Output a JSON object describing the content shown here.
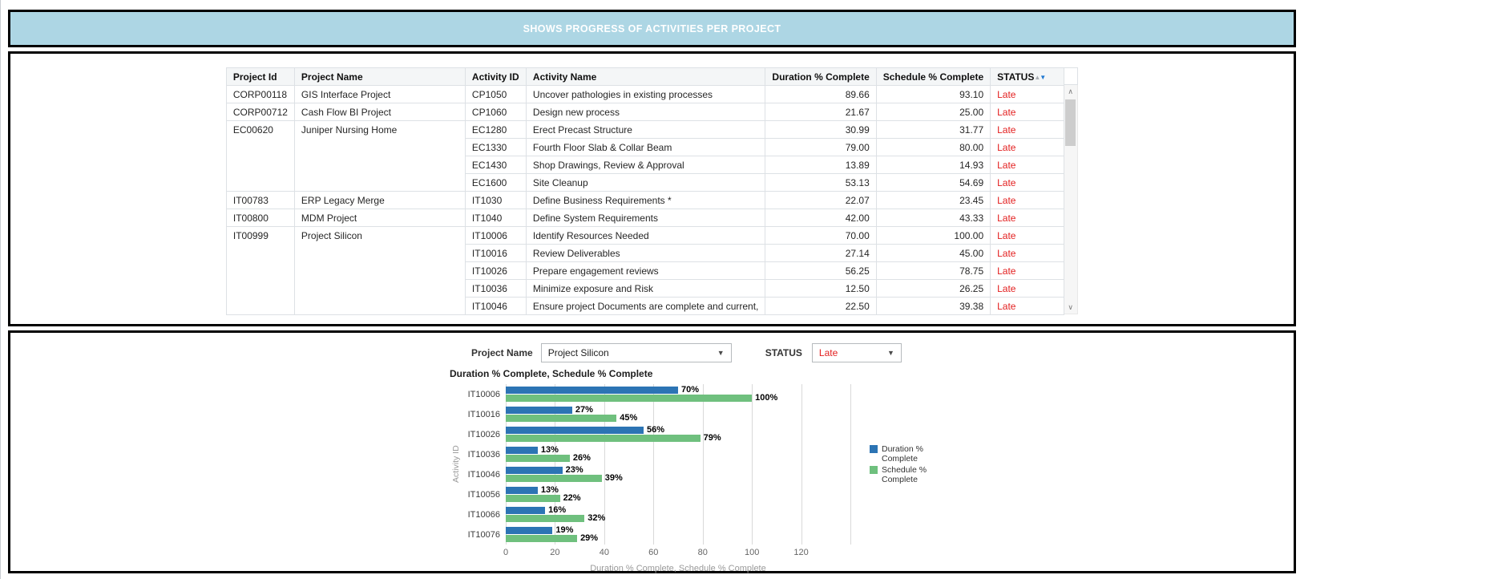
{
  "banner": {
    "title": "SHOWS PROGRESS OF ACTIVITIES PER PROJECT"
  },
  "colors": {
    "banner_bg": "#ADD6E4",
    "status_red": "#e32020",
    "bar_blue": "#2C74B4",
    "bar_green": "#6FC07E"
  },
  "icons": {
    "sort_asc": "▲",
    "sort_desc": "▼",
    "dropdown_arrow": "▼",
    "scroll_up": "∧",
    "scroll_down": "∨"
  },
  "table": {
    "columns": {
      "project_id": "Project Id",
      "project_name": "Project Name",
      "activity_id": "Activity ID",
      "activity_name": "Activity Name",
      "duration": "Duration % Complete",
      "schedule": "Schedule % Complete",
      "status": "STATUS"
    },
    "rows": [
      {
        "project_id": "CORP00118",
        "project_name": "GIS Interface Project",
        "project_rowspan": 1,
        "activity_id": "CP1050",
        "activity_name": "Uncover pathologies in existing processes",
        "duration": "89.66",
        "schedule": "93.10",
        "status": "Late"
      },
      {
        "project_id": "CORP00712",
        "project_name": "Cash Flow BI Project",
        "project_rowspan": 1,
        "activity_id": "CP1060",
        "activity_name": "Design new process",
        "duration": "21.67",
        "schedule": "25.00",
        "status": "Late"
      },
      {
        "project_id": "EC00620",
        "project_name": "Juniper Nursing Home",
        "project_rowspan": 4,
        "activity_id": "EC1280",
        "activity_name": "Erect Precast Structure",
        "duration": "30.99",
        "schedule": "31.77",
        "status": "Late"
      },
      {
        "activity_id": "EC1330",
        "activity_name": "Fourth Floor Slab & Collar Beam",
        "duration": "79.00",
        "schedule": "80.00",
        "status": "Late"
      },
      {
        "activity_id": "EC1430",
        "activity_name": "Shop Drawings, Review & Approval",
        "duration": "13.89",
        "schedule": "14.93",
        "status": "Late"
      },
      {
        "activity_id": "EC1600",
        "activity_name": "Site Cleanup",
        "duration": "53.13",
        "schedule": "54.69",
        "status": "Late"
      },
      {
        "project_id": "IT00783",
        "project_name": "ERP Legacy Merge",
        "project_rowspan": 1,
        "activity_id": "IT1030",
        "activity_name": "Define Business Requirements *",
        "duration": "22.07",
        "schedule": "23.45",
        "status": "Late"
      },
      {
        "project_id": "IT00800",
        "project_name": "MDM Project",
        "project_rowspan": 1,
        "activity_id": "IT1040",
        "activity_name": "Define System Requirements",
        "duration": "42.00",
        "schedule": "43.33",
        "status": "Late"
      },
      {
        "project_id": "IT00999",
        "project_name": "Project Silicon",
        "project_rowspan": 5,
        "activity_id": "IT10006",
        "activity_name": "Identify Resources Needed",
        "duration": "70.00",
        "schedule": "100.00",
        "status": "Late"
      },
      {
        "activity_id": "IT10016",
        "activity_name": "Review Deliverables",
        "duration": "27.14",
        "schedule": "45.00",
        "status": "Late"
      },
      {
        "activity_id": "IT10026",
        "activity_name": "Prepare engagement reviews",
        "duration": "56.25",
        "schedule": "78.75",
        "status": "Late"
      },
      {
        "activity_id": "IT10036",
        "activity_name": "Minimize exposure and Risk",
        "duration": "12.50",
        "schedule": "26.25",
        "status": "Late"
      },
      {
        "activity_id": "IT10046",
        "activity_name": "Ensure project Documents are complete and current,",
        "duration": "22.50",
        "schedule": "39.38",
        "status": "Late"
      }
    ]
  },
  "filters": {
    "project_label": "Project Name",
    "project_value": "Project Silicon",
    "status_label": "STATUS",
    "status_value": "Late"
  },
  "chart_data": {
    "type": "bar",
    "orientation": "horizontal",
    "title": "Duration % Complete, Schedule % Complete",
    "xlabel": "Duration % Complete, Schedule % Complete",
    "ylabel": "Activity ID",
    "categories": [
      "IT10006",
      "IT10016",
      "IT10026",
      "IT10036",
      "IT10046",
      "IT10056",
      "IT10066",
      "IT10076"
    ],
    "series": [
      {
        "name": "Duration % Complete",
        "color": "#2C74B4",
        "values": [
          70,
          27,
          56,
          13,
          23,
          13,
          16,
          19
        ],
        "labels": [
          "70%",
          "27%",
          "56%",
          "13%",
          "23%",
          "13%",
          "16%",
          "19%"
        ]
      },
      {
        "name": "Schedule % Complete",
        "color": "#6FC07E",
        "values": [
          100,
          45,
          79,
          26,
          39,
          22,
          32,
          29
        ],
        "labels": [
          "100%",
          "45%",
          "79%",
          "26%",
          "39%",
          "22%",
          "32%",
          "29%"
        ]
      }
    ],
    "xticks": [
      0,
      20,
      40,
      60,
      80,
      100,
      120
    ],
    "xmax": 140,
    "grid": true,
    "legend_position": "right"
  }
}
